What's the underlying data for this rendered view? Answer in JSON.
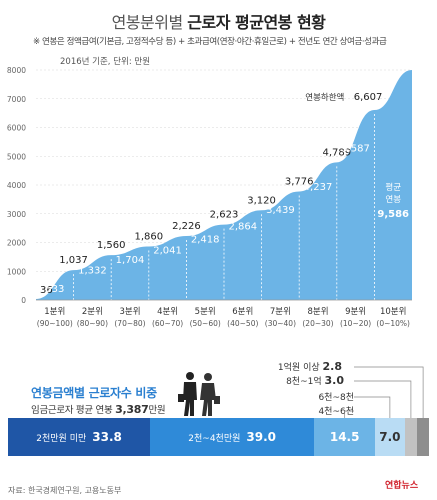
{
  "title_part1": "연봉분위별",
  "title_part2": "근로자 평균연봉 현황",
  "note": "※ 연봉은 정액급여(기본급, 고정적수당 등) + 초과급여(연장·야간·휴일근로) + 전년도 연간 상여금·성과급",
  "basis": "2016년 기준, 단위: 만원",
  "chart_data": {
    "type": "area",
    "ylim": [
      0,
      8000
    ],
    "yticks": [
      0,
      1000,
      2000,
      3000,
      4000,
      5000,
      6000,
      7000,
      8000
    ],
    "categories": [
      "1분위",
      "2분위",
      "3분위",
      "4분위",
      "5분위",
      "6분위",
      "7분위",
      "8분위",
      "9분위",
      "10분위"
    ],
    "category_ranges": [
      "(90~100)",
      "(80~90)",
      "(70~80)",
      "(60~70)",
      "(50~60)",
      "(40~50)",
      "(30~40)",
      "(20~30)",
      "(10~20)",
      "(0~10%)"
    ],
    "upper_limits": [
      1037,
      1560,
      1860,
      2226,
      2623,
      3120,
      3776,
      4789,
      6607
    ],
    "lower_start": 36,
    "averages": [
      633,
      1332,
      1704,
      2041,
      2418,
      2864,
      3439,
      4237,
      5587,
      9586
    ],
    "top_bound": 8000,
    "annotation": "연봉하한액",
    "average_label": "평균\n연봉",
    "area_color": "#6cb4e6"
  },
  "share": {
    "title": "연봉금액별 근로자수 비중",
    "sub_prefix": "임금근로자 평균 연봉",
    "sub_value": "3,387",
    "sub_suffix": "만원",
    "segments": [
      {
        "label": "2천만원 미만",
        "value": "33.8",
        "share": 33.8,
        "color": "#1f56a6"
      },
      {
        "label": "2천~4천만원",
        "value": "39.0",
        "share": 39.0,
        "color": "#2f8ad8"
      },
      {
        "label": "4천~6천",
        "value": "14.5",
        "share": 14.5,
        "color": "#6cb4e6"
      },
      {
        "label": "6천~8천",
        "value": "7.0",
        "share": 7.0,
        "color": "#b9dcf4"
      },
      {
        "label": "8천~1억",
        "value": "3.0",
        "share": 3.0,
        "color": "#c2c2c2"
      },
      {
        "label": "1억원 이상",
        "value": "2.8",
        "share": 2.8,
        "color": "#8e8e8e"
      }
    ]
  },
  "source": "자료: 한국경제연구원, 고용노동부",
  "logo": "연합뉴스"
}
